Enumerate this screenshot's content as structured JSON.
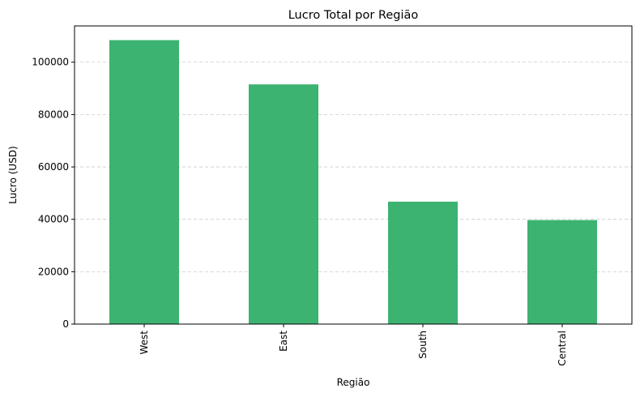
{
  "chart_data": {
    "type": "bar",
    "title": "Lucro Total por Região",
    "xlabel": "Região",
    "ylabel": "Lucro (USD)",
    "categories": [
      "West",
      "East",
      "South",
      "Central"
    ],
    "values": [
      108418,
      91523,
      46749,
      39706
    ],
    "ylim": [
      0,
      113839
    ],
    "yticks": [
      0,
      20000,
      40000,
      60000,
      80000,
      100000
    ],
    "ytick_labels": [
      "0",
      "20000",
      "40000",
      "60000",
      "80000",
      "100000"
    ],
    "grid": "y-dashed",
    "bar_color": "#3cb371"
  }
}
